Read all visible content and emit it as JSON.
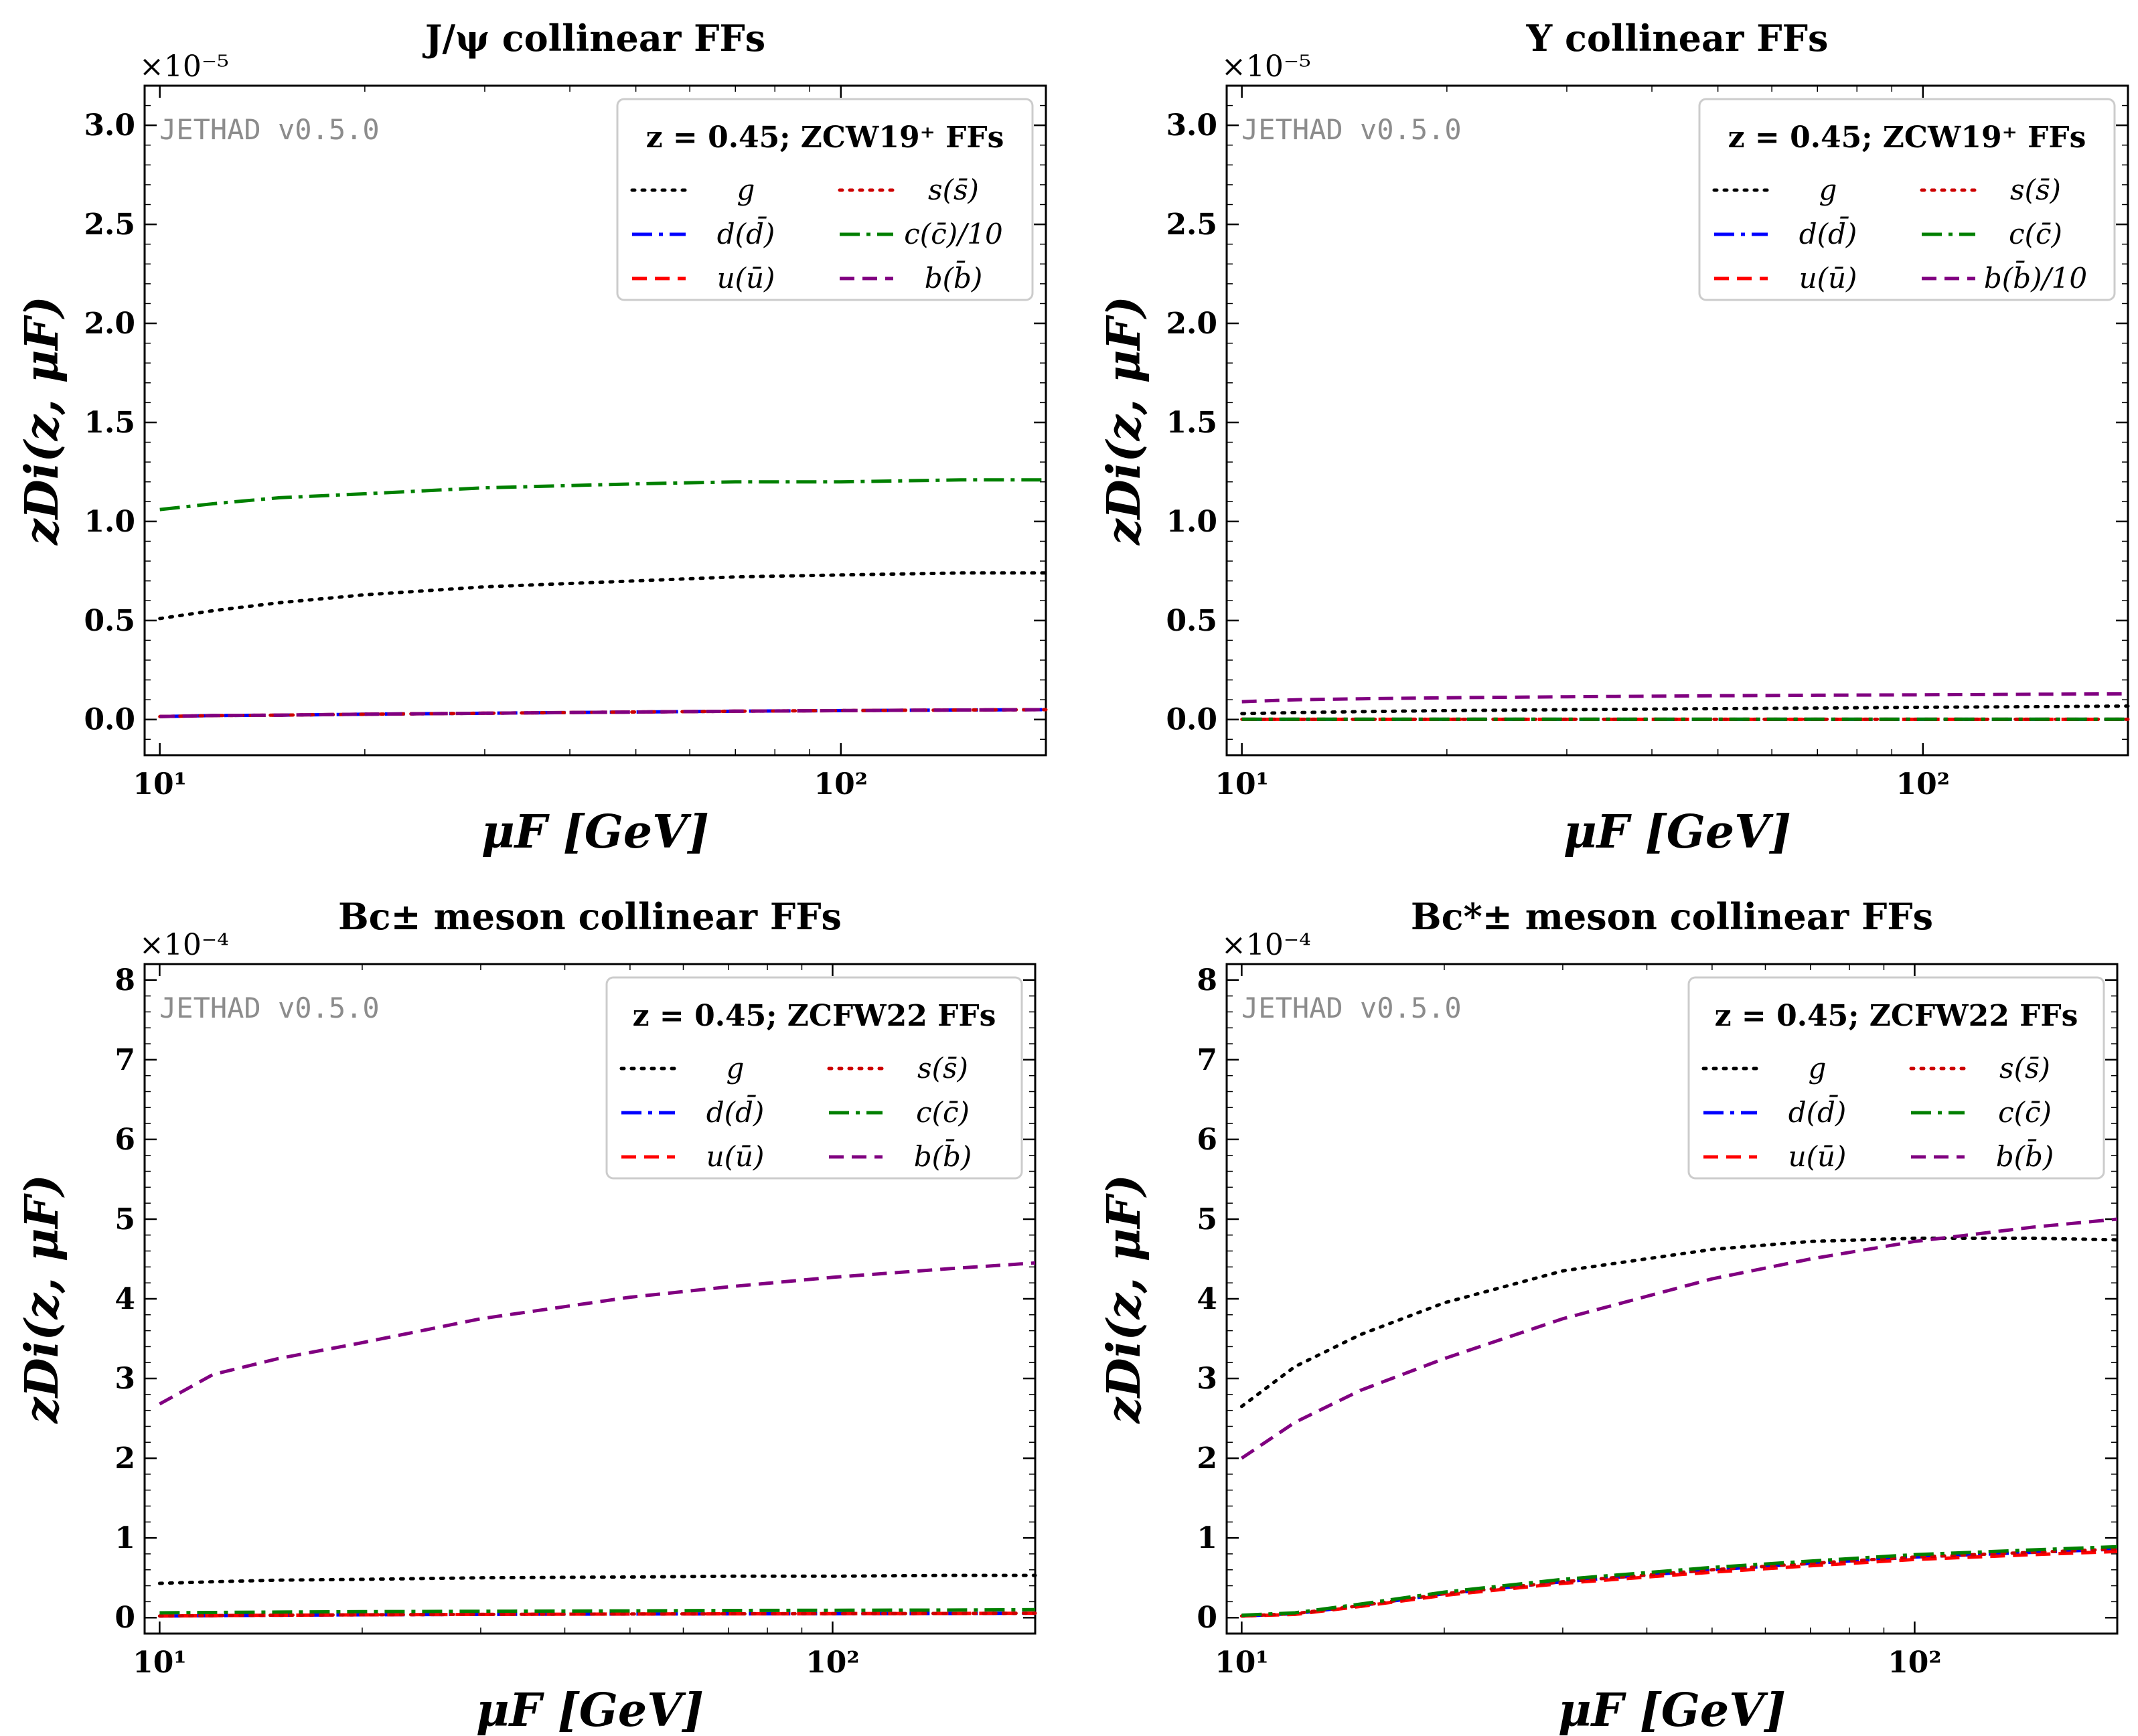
{
  "chart_data": [
    {
      "type": "line",
      "title": "J/ψ collinear FFs",
      "xlabel": "μF [GeV]",
      "ylabel": "zDi(z, μF)",
      "xscale": "log",
      "xlim": [
        9.5,
        200
      ],
      "ylim": [
        -0.18,
        3.2
      ],
      "y_multiplier": "×10⁻⁵",
      "yticks": [
        0.0,
        0.5,
        1.0,
        1.5,
        2.0,
        2.5,
        3.0
      ],
      "ytick_labels": [
        "0.0",
        "0.5",
        "1.0",
        "1.5",
        "2.0",
        "2.5",
        "3.0"
      ],
      "xticks": [
        10,
        100
      ],
      "xtick_labels": [
        "10¹",
        "10²"
      ],
      "watermark": "JETHAD v0.5.0",
      "legend_header": "z = 0.45;  ZCW19⁺ FFs",
      "legend_position": "top-right",
      "x": [
        10,
        12,
        15,
        20,
        30,
        50,
        70,
        100,
        150,
        200
      ],
      "series": [
        {
          "name": "g",
          "color": "#000000",
          "dash": "dotted",
          "values": [
            0.51,
            0.55,
            0.59,
            0.63,
            0.67,
            0.7,
            0.72,
            0.73,
            0.74,
            0.74
          ]
        },
        {
          "name": "d(d̄)",
          "color": "#0000ff",
          "dash": "dashdot",
          "values": [
            0.015,
            0.02,
            0.022,
            0.027,
            0.032,
            0.038,
            0.042,
            0.045,
            0.048,
            0.05
          ]
        },
        {
          "name": "u(ū)",
          "color": "#ff0000",
          "dash": "dashed",
          "values": [
            0.015,
            0.02,
            0.022,
            0.027,
            0.032,
            0.038,
            0.042,
            0.045,
            0.048,
            0.05
          ]
        },
        {
          "name": "s(s̄)",
          "color": "#cc0000",
          "dash": "dotted",
          "values": [
            0.015,
            0.02,
            0.022,
            0.027,
            0.032,
            0.038,
            0.042,
            0.045,
            0.048,
            0.05
          ]
        },
        {
          "name": "c(c̄)/10",
          "color": "#008000",
          "dash": "dashdot",
          "values": [
            1.06,
            1.09,
            1.12,
            1.14,
            1.17,
            1.19,
            1.2,
            1.2,
            1.21,
            1.21
          ]
        },
        {
          "name": "b(b̄)",
          "color": "#800080",
          "dash": "dashed",
          "values": [
            0.015,
            0.02,
            0.022,
            0.027,
            0.032,
            0.038,
            0.042,
            0.045,
            0.048,
            0.05
          ]
        }
      ]
    },
    {
      "type": "line",
      "title": "Υ collinear FFs",
      "xlabel": "μF [GeV]",
      "ylabel": "zDi(z, μF)",
      "xscale": "log",
      "xlim": [
        9.5,
        200
      ],
      "ylim": [
        -0.18,
        3.2
      ],
      "y_multiplier": "×10⁻⁵",
      "yticks": [
        0.0,
        0.5,
        1.0,
        1.5,
        2.0,
        2.5,
        3.0
      ],
      "ytick_labels": [
        "0.0",
        "0.5",
        "1.0",
        "1.5",
        "2.0",
        "2.5",
        "3.0"
      ],
      "xticks": [
        10,
        100
      ],
      "xtick_labels": [
        "10¹",
        "10²"
      ],
      "watermark": "JETHAD v0.5.0",
      "legend_header": "z = 0.45;  ZCW19⁺ FFs",
      "legend_position": "top-right",
      "x": [
        10,
        12,
        15,
        20,
        30,
        50,
        70,
        100,
        150,
        200
      ],
      "series": [
        {
          "name": "g",
          "color": "#000000",
          "dash": "dotted",
          "values": [
            0.03,
            0.035,
            0.04,
            0.045,
            0.05,
            0.055,
            0.058,
            0.062,
            0.065,
            0.068
          ]
        },
        {
          "name": "d(d̄)",
          "color": "#0000ff",
          "dash": "dashdot",
          "values": [
            0.001,
            0.001,
            0.001,
            0.001,
            0.001,
            0.001,
            0.001,
            0.001,
            0.001,
            0.001
          ]
        },
        {
          "name": "u(ū)",
          "color": "#ff0000",
          "dash": "dashed",
          "values": [
            0.001,
            0.001,
            0.001,
            0.001,
            0.001,
            0.001,
            0.001,
            0.001,
            0.001,
            0.001
          ]
        },
        {
          "name": "s(s̄)",
          "color": "#cc0000",
          "dash": "dotted",
          "values": [
            0.001,
            0.001,
            0.001,
            0.001,
            0.001,
            0.001,
            0.001,
            0.001,
            0.001,
            0.001
          ]
        },
        {
          "name": "c(c̄)",
          "color": "#008000",
          "dash": "dashdot",
          "values": [
            0.002,
            0.002,
            0.002,
            0.002,
            0.002,
            0.002,
            0.002,
            0.002,
            0.002,
            0.002
          ]
        },
        {
          "name": "b(b̄)/10",
          "color": "#800080",
          "dash": "dashed",
          "values": [
            0.09,
            0.1,
            0.105,
            0.11,
            0.115,
            0.12,
            0.123,
            0.125,
            0.128,
            0.13
          ]
        }
      ]
    },
    {
      "type": "line",
      "title": "Bc± meson collinear FFs",
      "xlabel": "μF [GeV]",
      "ylabel": "zDi(z, μF)",
      "xscale": "log",
      "xlim": [
        9.5,
        200
      ],
      "ylim": [
        -0.2,
        8.2
      ],
      "y_multiplier": "×10⁻⁴",
      "yticks": [
        0,
        1,
        2,
        3,
        4,
        5,
        6,
        7,
        8
      ],
      "ytick_labels": [
        "0",
        "1",
        "2",
        "3",
        "4",
        "5",
        "6",
        "7",
        "8"
      ],
      "xticks": [
        10,
        100
      ],
      "xtick_labels": [
        "10¹",
        "10²"
      ],
      "watermark": "JETHAD v0.5.0",
      "legend_header": "z = 0.45;  ZCFW22 FFs",
      "legend_position": "top-right",
      "x": [
        10,
        12,
        15,
        20,
        30,
        50,
        70,
        100,
        150,
        200
      ],
      "series": [
        {
          "name": "g",
          "color": "#000000",
          "dash": "dotted",
          "values": [
            0.43,
            0.45,
            0.47,
            0.48,
            0.5,
            0.51,
            0.52,
            0.52,
            0.53,
            0.53
          ]
        },
        {
          "name": "d(d̄)",
          "color": "#0000ff",
          "dash": "dashdot",
          "values": [
            0.02,
            0.025,
            0.03,
            0.035,
            0.04,
            0.045,
            0.048,
            0.05,
            0.052,
            0.055
          ]
        },
        {
          "name": "u(ū)",
          "color": "#ff0000",
          "dash": "dashed",
          "values": [
            0.02,
            0.025,
            0.03,
            0.035,
            0.04,
            0.045,
            0.048,
            0.05,
            0.052,
            0.055
          ]
        },
        {
          "name": "s(s̄)",
          "color": "#cc0000",
          "dash": "dotted",
          "values": [
            0.02,
            0.025,
            0.03,
            0.035,
            0.04,
            0.045,
            0.048,
            0.05,
            0.052,
            0.055
          ]
        },
        {
          "name": "c(c̄)",
          "color": "#008000",
          "dash": "dashdot",
          "values": [
            0.06,
            0.065,
            0.07,
            0.075,
            0.08,
            0.085,
            0.09,
            0.092,
            0.095,
            0.1
          ]
        },
        {
          "name": "b(b̄)",
          "color": "#800080",
          "dash": "dashed",
          "values": [
            2.68,
            3.05,
            3.25,
            3.45,
            3.75,
            4.02,
            4.15,
            4.27,
            4.38,
            4.45
          ]
        }
      ]
    },
    {
      "type": "line",
      "title": "Bc*± meson collinear FFs",
      "xlabel": "μF [GeV]",
      "ylabel": "zDi(z, μF)",
      "xscale": "log",
      "xlim": [
        9.5,
        200
      ],
      "ylim": [
        -0.2,
        8.2
      ],
      "y_multiplier": "×10⁻⁴",
      "yticks": [
        0,
        1,
        2,
        3,
        4,
        5,
        6,
        7,
        8
      ],
      "ytick_labels": [
        "0",
        "1",
        "2",
        "3",
        "4",
        "5",
        "6",
        "7",
        "8"
      ],
      "xticks": [
        10,
        100
      ],
      "xtick_labels": [
        "10¹",
        "10²"
      ],
      "watermark": "JETHAD v0.5.0",
      "legend_header": "z = 0.45;  ZCFW22 FFs",
      "legend_position": "top-right",
      "x": [
        10,
        12,
        15,
        20,
        30,
        50,
        70,
        100,
        150,
        200
      ],
      "series": [
        {
          "name": "g",
          "color": "#000000",
          "dash": "dotted",
          "values": [
            2.65,
            3.15,
            3.55,
            3.95,
            4.35,
            4.62,
            4.72,
            4.76,
            4.76,
            4.74
          ]
        },
        {
          "name": "d(d̄)",
          "color": "#0000ff",
          "dash": "dashdot",
          "values": [
            0.02,
            0.05,
            0.15,
            0.3,
            0.45,
            0.6,
            0.68,
            0.76,
            0.82,
            0.86
          ]
        },
        {
          "name": "u(ū)",
          "color": "#ff0000",
          "dash": "dashed",
          "values": [
            0.02,
            0.04,
            0.14,
            0.28,
            0.43,
            0.57,
            0.65,
            0.73,
            0.79,
            0.83
          ]
        },
        {
          "name": "s(s̄)",
          "color": "#cc0000",
          "dash": "dotted",
          "values": [
            0.02,
            0.05,
            0.15,
            0.3,
            0.45,
            0.6,
            0.68,
            0.76,
            0.82,
            0.86
          ]
        },
        {
          "name": "c(c̄)",
          "color": "#008000",
          "dash": "dashdot",
          "values": [
            0.03,
            0.06,
            0.17,
            0.32,
            0.48,
            0.63,
            0.71,
            0.79,
            0.85,
            0.89
          ]
        },
        {
          "name": "b(b̄)",
          "color": "#800080",
          "dash": "dashed",
          "values": [
            2.0,
            2.45,
            2.85,
            3.25,
            3.75,
            4.25,
            4.5,
            4.72,
            4.9,
            5.0
          ]
        }
      ]
    }
  ]
}
